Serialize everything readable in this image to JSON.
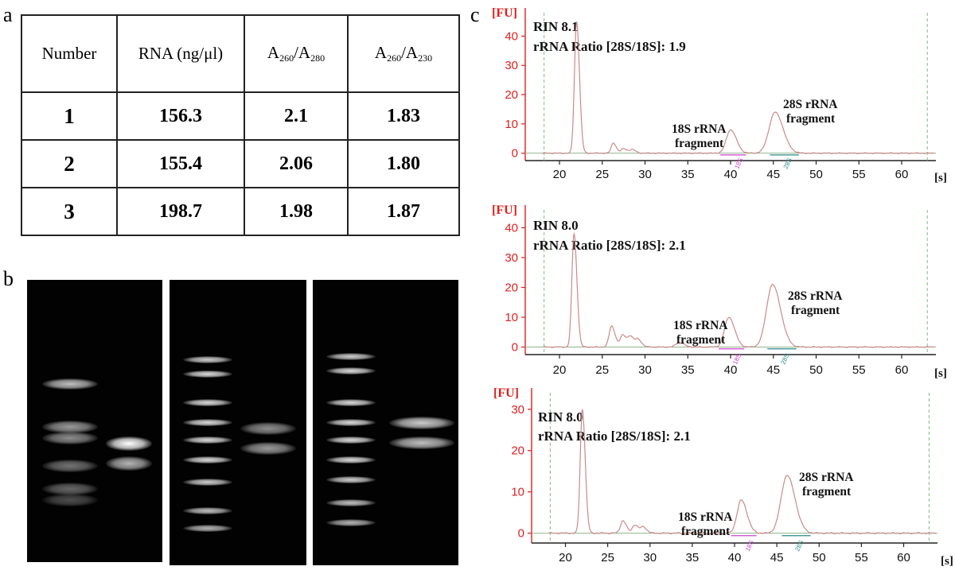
{
  "panels": {
    "a": "a",
    "b": "b",
    "c": "c"
  },
  "table": {
    "headers": {
      "number": "Number",
      "rna": "RNA (ng/μl)",
      "a1_main": "A",
      "a1_sub1": "260",
      "a1_slash": "/A",
      "a1_sub2": "280",
      "a2_main": "A",
      "a2_sub1": "260",
      "a2_slash": "/A",
      "a2_sub2": "230"
    },
    "rows": [
      {
        "number": "1",
        "rna": "156.3",
        "a260_280": "2.1",
        "a260_230": "1.83"
      },
      {
        "number": "2",
        "rna": "155.4",
        "a260_280": "2.06",
        "a260_230": "1.80"
      },
      {
        "number": "3",
        "rna": "198.7",
        "a260_280": "1.98",
        "a260_230": "1.87"
      }
    ]
  },
  "gels": [
    {
      "ladder_intensity": [
        0.75,
        0.6,
        0.55,
        0.45,
        0.4,
        0.3
      ],
      "sample_bands": [
        {
          "pos": 0.58,
          "intensity": 1.0
        },
        {
          "pos": 0.65,
          "intensity": 0.7
        }
      ]
    },
    {
      "ladder_intensity": [
        0.8,
        0.85,
        0.85,
        0.85,
        0.85,
        0.85,
        0.8,
        0.75,
        0.7
      ],
      "sample_bands": [
        {
          "pos": 0.52,
          "intensity": 0.55
        },
        {
          "pos": 0.59,
          "intensity": 0.6
        }
      ]
    },
    {
      "ladder_intensity": [
        0.8,
        0.85,
        0.85,
        0.85,
        0.85,
        0.85,
        0.8,
        0.75,
        0.7
      ],
      "sample_bands": [
        {
          "pos": 0.5,
          "intensity": 0.8
        },
        {
          "pos": 0.57,
          "intensity": 0.75
        }
      ]
    }
  ],
  "chart_data": [
    {
      "type": "line",
      "y_unit": "[FU]",
      "x_unit": "[s]",
      "rin_label": "RIN 8.1",
      "ratio_label": "rRNA Ratio [28S/18S]: 1.9",
      "xlim": [
        16,
        64
      ],
      "ylim": [
        -2,
        48
      ],
      "xticks": [
        20,
        25,
        30,
        35,
        40,
        45,
        50,
        55,
        60
      ],
      "yticks": [
        0,
        10,
        20,
        30,
        40
      ],
      "peaks": [
        {
          "x": 22.0,
          "y": 45,
          "w": 0.25
        },
        {
          "x": 26.3,
          "y": 3.5,
          "w": 0.25
        },
        {
          "x": 27.5,
          "y": 1.5,
          "w": 0.3
        },
        {
          "x": 28.5,
          "y": 1.2,
          "w": 0.3
        },
        {
          "x": 40.0,
          "y": 8,
          "w": 0.5
        },
        {
          "x": 45.2,
          "y": 14,
          "w": 0.7
        }
      ],
      "annotations": [
        {
          "line1": "18S rRNA",
          "line2": "fragment"
        },
        {
          "line1": "28S rRNA",
          "line2": "fragment"
        }
      ],
      "markers": [
        "18S",
        "28S"
      ]
    },
    {
      "type": "line",
      "y_unit": "[FU]",
      "x_unit": "[s]",
      "rin_label": "RIN 8.0",
      "ratio_label": "rRNA Ratio [28S/18S]: 2.1",
      "xlim": [
        16,
        64
      ],
      "ylim": [
        -2,
        46
      ],
      "xticks": [
        20,
        25,
        30,
        35,
        40,
        45,
        50,
        55,
        60
      ],
      "yticks": [
        0,
        10,
        20,
        30,
        40
      ],
      "peaks": [
        {
          "x": 21.7,
          "y": 38,
          "w": 0.25
        },
        {
          "x": 26.1,
          "y": 7,
          "w": 0.3
        },
        {
          "x": 27.4,
          "y": 4,
          "w": 0.3
        },
        {
          "x": 28.3,
          "y": 3.5,
          "w": 0.3
        },
        {
          "x": 29.2,
          "y": 2.5,
          "w": 0.3
        },
        {
          "x": 34.0,
          "y": 1.5,
          "w": 0.4
        },
        {
          "x": 39.8,
          "y": 10,
          "w": 0.5
        },
        {
          "x": 44.9,
          "y": 21,
          "w": 0.7
        }
      ],
      "annotations": [
        {
          "line1": "18S rRNA",
          "line2": "fragment"
        },
        {
          "line1": "28S rRNA",
          "line2": "fragment"
        }
      ],
      "markers": [
        "18S",
        "28S"
      ]
    },
    {
      "type": "line",
      "y_unit": "[FU]",
      "x_unit": "[s]",
      "rin_label": "RIN 8.0",
      "ratio_label": "rRNA Ratio [28S/18S]: 2.1",
      "xlim": [
        16,
        64
      ],
      "ylim": [
        -2,
        34
      ],
      "xticks": [
        20,
        25,
        30,
        35,
        40,
        45,
        50,
        55,
        60
      ],
      "yticks": [
        0,
        10,
        20,
        30
      ],
      "peaks": [
        {
          "x": 22.0,
          "y": 30,
          "w": 0.25
        },
        {
          "x": 26.8,
          "y": 3,
          "w": 0.3
        },
        {
          "x": 28.2,
          "y": 2,
          "w": 0.3
        },
        {
          "x": 29.2,
          "y": 1.5,
          "w": 0.3
        },
        {
          "x": 40.8,
          "y": 8,
          "w": 0.5
        },
        {
          "x": 46.2,
          "y": 14,
          "w": 0.7
        }
      ],
      "annotations": [
        {
          "line1": "18S rRNA",
          "line2": "fragment"
        },
        {
          "line1": "28S rRNA",
          "line2": "fragment"
        }
      ],
      "markers": [
        "18S",
        "28S"
      ]
    }
  ]
}
